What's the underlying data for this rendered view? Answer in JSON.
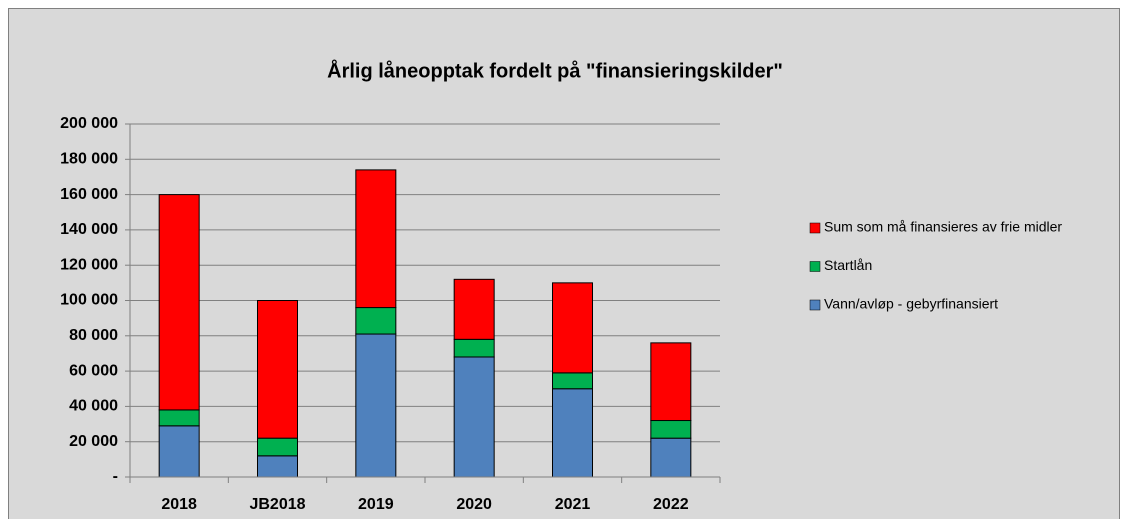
{
  "chart_data": {
    "type": "stacked_bar",
    "title": "Årlig låneopptak fordelt på \"finansieringskilder\"",
    "categories": [
      "2018",
      "JB2018",
      "2019",
      "2020",
      "2021",
      "2022"
    ],
    "series": [
      {
        "name": "Vann/avløp - gebyrfinansiert",
        "color": "#4f81bd",
        "values": [
          29000,
          12000,
          81000,
          68000,
          50000,
          22000
        ]
      },
      {
        "name": "Startlån",
        "color": "#00b050",
        "values": [
          9000,
          10000,
          15000,
          10000,
          9000,
          10000
        ]
      },
      {
        "name": "Sum som må finansieres av frie midler",
        "color": "#ff0000",
        "values": [
          122000,
          78000,
          78000,
          34000,
          51000,
          44000
        ]
      }
    ],
    "ylim": [
      0,
      200000
    ],
    "yticks": [
      {
        "value": 0,
        "label": "-"
      },
      {
        "value": 20000,
        "label": "20 000"
      },
      {
        "value": 40000,
        "label": "40 000"
      },
      {
        "value": 60000,
        "label": "60 000"
      },
      {
        "value": 80000,
        "label": "80 000"
      },
      {
        "value": 100000,
        "label": "100 000"
      },
      {
        "value": 120000,
        "label": "120 000"
      },
      {
        "value": 140000,
        "label": "140 000"
      },
      {
        "value": 160000,
        "label": "160 000"
      },
      {
        "value": 180000,
        "label": "180 000"
      },
      {
        "value": 200000,
        "label": "200 000"
      }
    ],
    "grid": true,
    "legend": "right"
  }
}
